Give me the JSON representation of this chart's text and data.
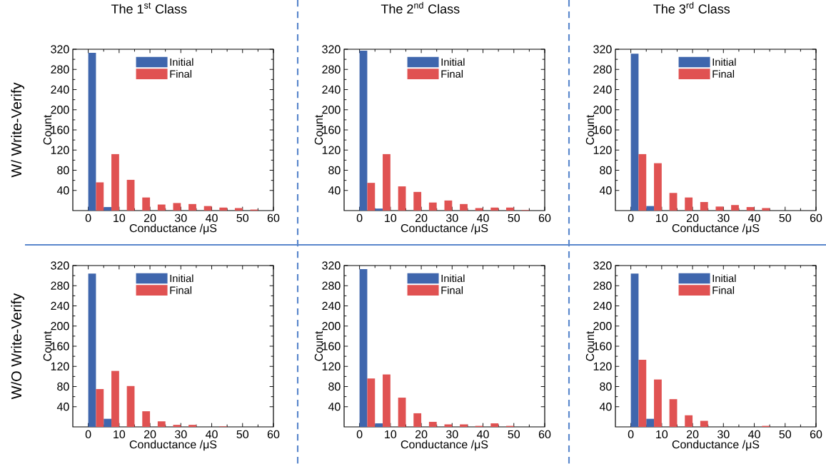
{
  "chart_data": [
    {
      "type": "histogram",
      "title": "The 1$^{st}$ Class",
      "annotations": [
        "W/ Write-Verify"
      ],
      "xlabel": "Conductance /μS",
      "ylabel": "Count",
      "bins": [
        0,
        5,
        10,
        15,
        20,
        25,
        30,
        35,
        40,
        45,
        50,
        55,
        60
      ],
      "xlim": [
        -5,
        60
      ],
      "xticks": [
        0,
        10,
        20,
        30,
        40,
        50,
        60
      ],
      "ylim": [
        0,
        320
      ],
      "yticks": [
        40,
        80,
        120,
        160,
        200,
        240,
        280,
        320
      ],
      "legend": "top",
      "series": [
        {
          "name": "Initial",
          "color": "#3f66ad",
          "values": [
            313,
            7,
            0,
            0,
            0,
            0,
            0,
            0,
            0,
            0,
            0,
            0
          ]
        },
        {
          "name": "Final",
          "color": "#e05252",
          "values": [
            56,
            112,
            61,
            26,
            12,
            15,
            13,
            9,
            6,
            5,
            2,
            0
          ]
        }
      ]
    },
    {
      "type": "histogram",
      "title": "The 2$^{nd}$ Class",
      "xlabel": "Conductance /μS",
      "ylabel": "Count",
      "bins": [
        0,
        5,
        10,
        15,
        20,
        25,
        30,
        35,
        40,
        45,
        50,
        55,
        60
      ],
      "xlim": [
        -5,
        60
      ],
      "xticks": [
        0,
        10,
        20,
        30,
        40,
        50,
        60
      ],
      "ylim": [
        0,
        320
      ],
      "yticks": [
        40,
        80,
        120,
        160,
        200,
        240,
        280,
        320
      ],
      "legend": "top",
      "series": [
        {
          "name": "Initial",
          "color": "#3f66ad",
          "values": [
            317,
            4,
            0,
            0,
            0,
            0,
            0,
            0,
            0,
            0,
            0,
            0
          ]
        },
        {
          "name": "Final",
          "color": "#e05252",
          "values": [
            55,
            112,
            48,
            37,
            16,
            20,
            13,
            5,
            6,
            6,
            1,
            0
          ]
        }
      ]
    },
    {
      "type": "histogram",
      "title": "The 3$^{rd}$ Class",
      "xlabel": "Conductance /μS",
      "ylabel": "Count",
      "bins": [
        0,
        5,
        10,
        15,
        20,
        25,
        30,
        35,
        40,
        45,
        50,
        55,
        60
      ],
      "xlim": [
        -5,
        60
      ],
      "xticks": [
        0,
        10,
        20,
        30,
        40,
        50,
        60
      ],
      "ylim": [
        0,
        320
      ],
      "yticks": [
        40,
        80,
        120,
        160,
        200,
        240,
        280,
        320
      ],
      "legend": "top",
      "series": [
        {
          "name": "Initial",
          "color": "#3f66ad",
          "values": [
            311,
            9,
            0,
            0,
            0,
            0,
            0,
            0,
            0,
            0,
            0,
            0
          ]
        },
        {
          "name": "Final",
          "color": "#e05252",
          "values": [
            112,
            94,
            35,
            26,
            17,
            8,
            11,
            7,
            5,
            0,
            0,
            0
          ]
        }
      ]
    },
    {
      "type": "histogram",
      "annotations": [
        "W/O Write-Verify"
      ],
      "xlabel": "Conductance /μS",
      "ylabel": "Count",
      "bins": [
        0,
        5,
        10,
        15,
        20,
        25,
        30,
        35,
        40,
        45,
        50,
        55,
        60
      ],
      "xlim": [
        -5,
        60
      ],
      "xticks": [
        0,
        10,
        20,
        30,
        40,
        50,
        60
      ],
      "ylim": [
        0,
        320
      ],
      "yticks": [
        40,
        80,
        120,
        160,
        200,
        240,
        280,
        320
      ],
      "legend": "top",
      "series": [
        {
          "name": "Initial",
          "color": "#3f66ad",
          "values": [
            304,
            16,
            0,
            0,
            0,
            0,
            0,
            0,
            0,
            0,
            0,
            0
          ]
        },
        {
          "name": "Final",
          "color": "#e05252",
          "values": [
            75,
            111,
            81,
            31,
            11,
            4,
            4,
            0,
            1,
            0,
            0,
            0
          ]
        }
      ]
    },
    {
      "type": "histogram",
      "xlabel": "Conductance /μS",
      "ylabel": "Count",
      "bins": [
        0,
        5,
        10,
        15,
        20,
        25,
        30,
        35,
        40,
        45,
        50,
        55,
        60
      ],
      "xlim": [
        -5,
        60
      ],
      "xticks": [
        0,
        10,
        20,
        30,
        40,
        50,
        60
      ],
      "ylim": [
        0,
        320
      ],
      "yticks": [
        40,
        80,
        120,
        160,
        200,
        240,
        280,
        320
      ],
      "legend": "top",
      "series": [
        {
          "name": "Initial",
          "color": "#3f66ad",
          "values": [
            313,
            7,
            0,
            0,
            0,
            0,
            0,
            0,
            0,
            0,
            0,
            0
          ]
        },
        {
          "name": "Final",
          "color": "#e05252",
          "values": [
            96,
            104,
            58,
            27,
            10,
            5,
            5,
            2,
            7,
            2,
            0,
            0
          ]
        }
      ]
    },
    {
      "type": "histogram",
      "xlabel": "Conductance /μS",
      "ylabel": "Count",
      "bins": [
        0,
        5,
        10,
        15,
        20,
        25,
        30,
        35,
        40,
        45,
        50,
        55,
        60
      ],
      "xlim": [
        -5,
        60
      ],
      "xticks": [
        0,
        10,
        20,
        30,
        40,
        50,
        60
      ],
      "ylim": [
        0,
        320
      ],
      "yticks": [
        40,
        80,
        120,
        160,
        200,
        240,
        280,
        320
      ],
      "legend": "top",
      "series": [
        {
          "name": "Initial",
          "color": "#3f66ad",
          "values": [
            304,
            16,
            0,
            0,
            0,
            0,
            0,
            0,
            0,
            0,
            0,
            0
          ]
        },
        {
          "name": "Final",
          "color": "#e05252",
          "values": [
            133,
            94,
            55,
            23,
            12,
            0,
            0,
            0,
            2,
            0,
            0,
            0
          ]
        }
      ]
    }
  ]
}
